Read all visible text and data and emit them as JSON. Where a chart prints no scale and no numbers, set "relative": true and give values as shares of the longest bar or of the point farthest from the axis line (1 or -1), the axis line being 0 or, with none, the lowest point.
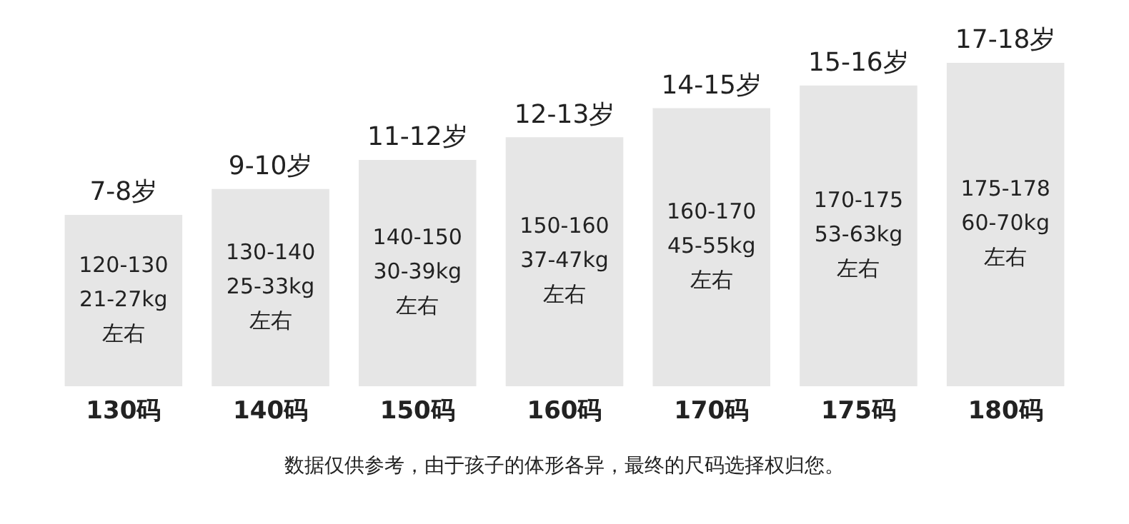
{
  "chart_data": {
    "type": "bar",
    "relative": true,
    "categories": [
      "130码",
      "140码",
      "150码",
      "160码",
      "170码",
      "175码",
      "180码"
    ],
    "values": [
      0.53,
      0.61,
      0.7,
      0.77,
      0.86,
      0.93,
      1
    ],
    "color": "#e6e6e6",
    "grid": false,
    "legend": false,
    "annotations": [
      "7-8岁",
      "9-10岁",
      "11-12岁",
      "12-13岁",
      "14-15岁",
      "15-16岁",
      "17-18岁",
      "120-130\n21-27kg\n左右",
      "130-140\n25-33kg\n左右",
      "140-150\n30-39kg\n左右",
      "150-160\n37-47kg\n左右",
      "160-170\n45-55kg\n左右",
      "170-175\n53-63kg\n左右",
      "175-178\n60-70kg\n左右",
      "数据仅供参考，由于孩子的体形各异，最终的尺码选择权归您。"
    ]
  }
}
